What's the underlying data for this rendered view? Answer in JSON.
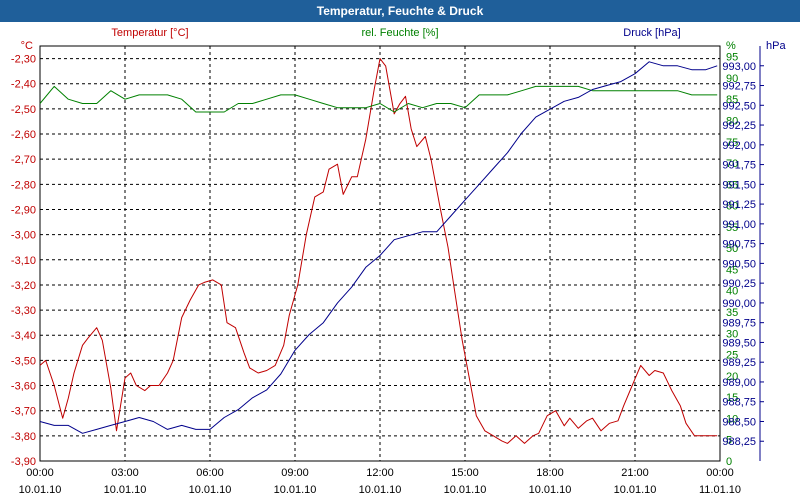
{
  "window": {
    "title": "Temperatur, Feuchte & Druck"
  },
  "chart_data": {
    "type": "line",
    "title": "Temperatur, Feuchte & Druck",
    "x_ticks": [
      {
        "time": "00:00",
        "date": "10.01.10"
      },
      {
        "time": "03:00",
        "date": "10.01.10"
      },
      {
        "time": "06:00",
        "date": "10.01.10"
      },
      {
        "time": "09:00",
        "date": "10.01.10"
      },
      {
        "time": "12:00",
        "date": "10.01.10"
      },
      {
        "time": "15:00",
        "date": "10.01.10"
      },
      {
        "time": "18:00",
        "date": "10.01.10"
      },
      {
        "time": "21:00",
        "date": "10.01.10"
      },
      {
        "time": "00:00",
        "date": "11.01.10"
      }
    ],
    "x_range_hours": [
      0,
      24
    ],
    "axes": {
      "temperature": {
        "label": "Temperatur [°C]",
        "unit": "°C",
        "range": [
          -3.9,
          -2.25
        ],
        "ticks": [
          "-2,30",
          "-2,40",
          "-2,50",
          "-2,60",
          "-2,70",
          "-2,80",
          "-2,90",
          "-3,00",
          "-3,10",
          "-3,20",
          "-3,30",
          "-3,40",
          "-3,50",
          "-3,60",
          "-3,70",
          "-3,80",
          "-3,90"
        ],
        "color": "#c00000"
      },
      "humidity": {
        "label": "rel. Feuchte [%]",
        "unit": "%",
        "range": [
          0,
          97.5
        ],
        "ticks": [
          "95",
          "90",
          "85",
          "80",
          "75",
          "70",
          "65",
          "60",
          "55",
          "50",
          "45",
          "40",
          "35",
          "30",
          "25",
          "20",
          "15",
          "10",
          "5",
          "0"
        ],
        "color": "#008000"
      },
      "pressure": {
        "label": "Druck [hPa]",
        "unit": "hPa",
        "range": [
          988.0,
          993.25
        ],
        "ticks": [
          "993,00",
          "992,75",
          "992,50",
          "992,25",
          "992,00",
          "991,75",
          "991,50",
          "991,25",
          "991,00",
          "990,75",
          "990,50",
          "990,25",
          "990,00",
          "989,75",
          "989,50",
          "989,25",
          "989,00",
          "988,75",
          "988,50",
          "988,25"
        ],
        "color": "#00008b"
      }
    },
    "series": [
      {
        "name": "Temperatur",
        "axis": "temperature",
        "color": "#c00000",
        "x": [
          0,
          0.2,
          0.5,
          0.8,
          1.0,
          1.2,
          1.5,
          1.7,
          2.0,
          2.2,
          2.5,
          2.7,
          3.0,
          3.2,
          3.4,
          3.7,
          3.9,
          4.2,
          4.5,
          4.7,
          5.0,
          5.3,
          5.6,
          5.8,
          6.1,
          6.4,
          6.6,
          6.9,
          7.2,
          7.4,
          7.7,
          8.0,
          8.3,
          8.6,
          8.8,
          9.1,
          9.4,
          9.7,
          10.0,
          10.2,
          10.5,
          10.7,
          11.0,
          11.2,
          11.5,
          11.8,
          12.0,
          12.2,
          12.5,
          12.7,
          12.9,
          13.1,
          13.3,
          13.6,
          13.8,
          14.1,
          14.4,
          14.6,
          14.9,
          15.2,
          15.4,
          15.7,
          16.0,
          16.3,
          16.5,
          16.8,
          17.1,
          17.4,
          17.6,
          17.9,
          18.2,
          18.5,
          18.7,
          19.0,
          19.3,
          19.5,
          19.8,
          20.1,
          20.4,
          20.6,
          20.9,
          21.2,
          21.5,
          21.7,
          22.0,
          22.3,
          22.6,
          22.8,
          23.1,
          23.4,
          23.6,
          23.9
        ],
        "values": [
          -3.52,
          -3.5,
          -3.6,
          -3.73,
          -3.65,
          -3.55,
          -3.44,
          -3.41,
          -3.37,
          -3.42,
          -3.61,
          -3.78,
          -3.57,
          -3.55,
          -3.6,
          -3.62,
          -3.6,
          -3.6,
          -3.55,
          -3.5,
          -3.33,
          -3.26,
          -3.2,
          -3.19,
          -3.18,
          -3.2,
          -3.35,
          -3.37,
          -3.47,
          -3.53,
          -3.55,
          -3.54,
          -3.52,
          -3.44,
          -3.32,
          -3.2,
          -3.0,
          -2.85,
          -2.83,
          -2.74,
          -2.72,
          -2.84,
          -2.77,
          -2.77,
          -2.62,
          -2.42,
          -2.3,
          -2.33,
          -2.52,
          -2.48,
          -2.45,
          -2.58,
          -2.65,
          -2.61,
          -2.7,
          -2.88,
          -3.05,
          -3.2,
          -3.42,
          -3.6,
          -3.72,
          -3.78,
          -3.8,
          -3.82,
          -3.83,
          -3.8,
          -3.83,
          -3.8,
          -3.79,
          -3.72,
          -3.7,
          -3.76,
          -3.73,
          -3.77,
          -3.74,
          -3.73,
          -3.78,
          -3.75,
          -3.74,
          -3.68,
          -3.6,
          -3.52,
          -3.56,
          -3.54,
          -3.55,
          -3.62,
          -3.68,
          -3.75,
          -3.8,
          -3.8,
          -3.8,
          -3.8
        ]
      },
      {
        "name": "rel. Feuchte",
        "axis": "humidity",
        "color": "#008000",
        "x": [
          0,
          0.5,
          1.0,
          1.5,
          2.0,
          2.5,
          3.0,
          3.5,
          4.0,
          4.5,
          5.0,
          5.5,
          6.0,
          6.5,
          7.0,
          7.5,
          8.0,
          8.5,
          9.0,
          9.5,
          10.0,
          10.5,
          11.0,
          11.5,
          12.0,
          12.5,
          13.0,
          13.5,
          14.0,
          14.5,
          15.0,
          15.5,
          16.0,
          16.5,
          17.0,
          17.5,
          18.0,
          18.5,
          19.0,
          19.5,
          20.0,
          20.5,
          21.0,
          21.5,
          22.0,
          22.5,
          23.0,
          23.5,
          23.9
        ],
        "values": [
          84,
          88,
          85,
          84,
          84,
          87,
          85,
          86,
          86,
          86,
          85,
          82,
          82,
          82,
          84,
          84,
          85,
          86,
          86,
          85,
          84,
          83,
          83,
          83,
          84,
          82,
          84,
          83,
          84,
          84,
          83,
          86,
          86,
          86,
          87,
          88,
          88,
          88,
          88,
          87,
          87,
          87,
          87,
          87,
          87,
          87,
          86,
          86,
          86
        ]
      },
      {
        "name": "Druck",
        "axis": "pressure",
        "color": "#00008b",
        "x": [
          0,
          0.5,
          1.0,
          1.5,
          2.0,
          2.5,
          3.0,
          3.5,
          4.0,
          4.5,
          5.0,
          5.5,
          6.0,
          6.5,
          7.0,
          7.5,
          8.0,
          8.5,
          9.0,
          9.5,
          10.0,
          10.5,
          11.0,
          11.5,
          12.0,
          12.5,
          13.0,
          13.5,
          14.0,
          14.5,
          15.0,
          15.5,
          16.0,
          16.5,
          17.0,
          17.5,
          18.0,
          18.5,
          19.0,
          19.5,
          20.0,
          20.5,
          21.0,
          21.5,
          22.0,
          22.5,
          23.0,
          23.5,
          23.9
        ],
        "values": [
          988.5,
          988.45,
          988.45,
          988.35,
          988.4,
          988.45,
          988.5,
          988.55,
          988.5,
          988.4,
          988.45,
          988.4,
          988.4,
          988.55,
          988.65,
          988.8,
          988.9,
          989.1,
          989.4,
          989.6,
          989.75,
          990.0,
          990.2,
          990.45,
          990.6,
          990.8,
          990.85,
          990.9,
          990.9,
          991.1,
          991.3,
          991.5,
          991.7,
          991.9,
          992.15,
          992.35,
          992.45,
          992.55,
          992.6,
          992.7,
          992.75,
          992.8,
          992.9,
          993.05,
          993.0,
          993.0,
          992.95,
          992.95,
          993.0
        ]
      }
    ]
  }
}
